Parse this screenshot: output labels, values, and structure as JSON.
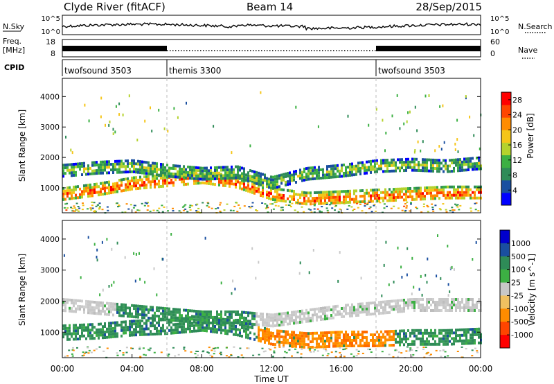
{
  "header": {
    "station": "Clyde River (fitACF)",
    "beam": "Beam 14",
    "date": "28/Sep/2015"
  },
  "sky_panel": {
    "left_label": "N.Sky",
    "left_ticks": [
      "10^5",
      "10^0"
    ],
    "right_ticks": [
      "10^5",
      "10^0"
    ],
    "right_label": "N.Search"
  },
  "freq_panel": {
    "left_label_1": "Freq.",
    "left_label_2": "[MHz]",
    "left_ticks": [
      "18",
      "8"
    ],
    "right_ticks": [
      "60",
      "0"
    ],
    "right_label": "Nave"
  },
  "cpid": {
    "label": "CPID",
    "programs": [
      {
        "name": "twofsound 3503",
        "start_hour": 0,
        "end_hour": 6
      },
      {
        "name": "themis 3300",
        "start_hour": 6,
        "end_hour": 18
      },
      {
        "name": "twofsound 3503",
        "start_hour": 18,
        "end_hour": 24
      }
    ]
  },
  "x_axis": {
    "label": "Time UT",
    "ticks": [
      "00:00",
      "04:00",
      "08:00",
      "12:00",
      "16:00",
      "20:00",
      "00:00"
    ]
  },
  "colors": {
    "power": [
      "#0000ff",
      "#1a4fa0",
      "#2e8b57",
      "#3cb043",
      "#b5d22d",
      "#f5c518",
      "#ff8c00",
      "#ff4500",
      "#ff0000"
    ],
    "velocity_neg": [
      "#ff0000",
      "#ff4500",
      "#ff8c00",
      "#f0c060"
    ],
    "velocity_pos": [
      "#c8c8c8",
      "#3cb043",
      "#2e8b57",
      "#1a4fa0",
      "#0000cd"
    ]
  },
  "chart_data": [
    {
      "type": "heatmap",
      "title": "Power",
      "xlabel": "Time UT",
      "ylabel": "Slant Range [km]",
      "xlim": [
        0,
        24
      ],
      "ylim": [
        180,
        4600
      ],
      "y_ticks": [
        "1000",
        "2000",
        "3000",
        "4000"
      ],
      "colorbar": {
        "label": "Power [dB]",
        "ticks": [
          "4",
          "8",
          "12",
          "16",
          "20",
          "24",
          "28"
        ],
        "range": [
          0,
          30
        ]
      },
      "bands": [
        {
          "name": "main",
          "points": [
            [
              0,
              800
            ],
            [
              2,
              950
            ],
            [
              4,
              1150
            ],
            [
              6,
              1250
            ],
            [
              8,
              1350
            ],
            [
              10,
              1200
            ],
            [
              12,
              800
            ],
            [
              14,
              650
            ],
            [
              16,
              700
            ],
            [
              18,
              750
            ],
            [
              20,
              800
            ],
            [
              22,
              850
            ],
            [
              24,
              850
            ]
          ],
          "width": 450,
          "power": 26
        },
        {
          "name": "upper",
          "points": [
            [
              0,
              1600
            ],
            [
              2,
              1700
            ],
            [
              4,
              1750
            ],
            [
              6,
              1600
            ],
            [
              8,
              1500
            ],
            [
              10,
              1550
            ],
            [
              12,
              1200
            ],
            [
              14,
              1500
            ],
            [
              16,
              1600
            ],
            [
              18,
              1750
            ],
            [
              20,
              1800
            ],
            [
              22,
              1750
            ],
            [
              24,
              1850
            ]
          ],
          "width": 380,
          "power": 14
        }
      ]
    },
    {
      "type": "heatmap",
      "title": "Velocity",
      "xlabel": "Time UT",
      "ylabel": "Slant Range [km]",
      "xlim": [
        0,
        24
      ],
      "ylim": [
        180,
        4600
      ],
      "y_ticks": [
        "1000",
        "2000",
        "3000",
        "4000"
      ],
      "colorbar": {
        "label": "Velocity [m s^-1]",
        "ticks": [
          "1000",
          "500",
          "100",
          "25",
          "-25",
          "-100",
          "-500",
          "-1000"
        ]
      },
      "bands": [
        {
          "name": "main",
          "points": [
            [
              0,
              1000
            ],
            [
              2,
              1050
            ],
            [
              4,
              1150
            ],
            [
              6,
              1200
            ],
            [
              8,
              1300
            ],
            [
              10,
              1150
            ],
            [
              12,
              850
            ],
            [
              14,
              750
            ],
            [
              16,
              800
            ],
            [
              18,
              800
            ],
            [
              20,
              850
            ],
            [
              22,
              850
            ],
            [
              24,
              900
            ]
          ],
          "width": 500,
          "velocity_class": [
            "green",
            "green",
            "green",
            "green",
            "green",
            "green",
            "orange",
            "orange",
            "orange",
            "orange",
            "green",
            "green",
            "green"
          ]
        },
        {
          "name": "upper",
          "points": [
            [
              0,
              1900
            ],
            [
              2,
              1800
            ],
            [
              4,
              1700
            ],
            [
              6,
              1600
            ],
            [
              8,
              1500
            ],
            [
              10,
              1500
            ],
            [
              12,
              1400
            ],
            [
              14,
              1550
            ],
            [
              16,
              1700
            ],
            [
              18,
              1800
            ],
            [
              20,
              1900
            ],
            [
              22,
              1900
            ],
            [
              24,
              1900
            ]
          ],
          "width": 400,
          "velocity_class": [
            "gray",
            "gray",
            "green",
            "green",
            "green",
            "green",
            "gray",
            "gray",
            "gray",
            "gray",
            "gray",
            "gray",
            "gray"
          ]
        }
      ]
    }
  ]
}
